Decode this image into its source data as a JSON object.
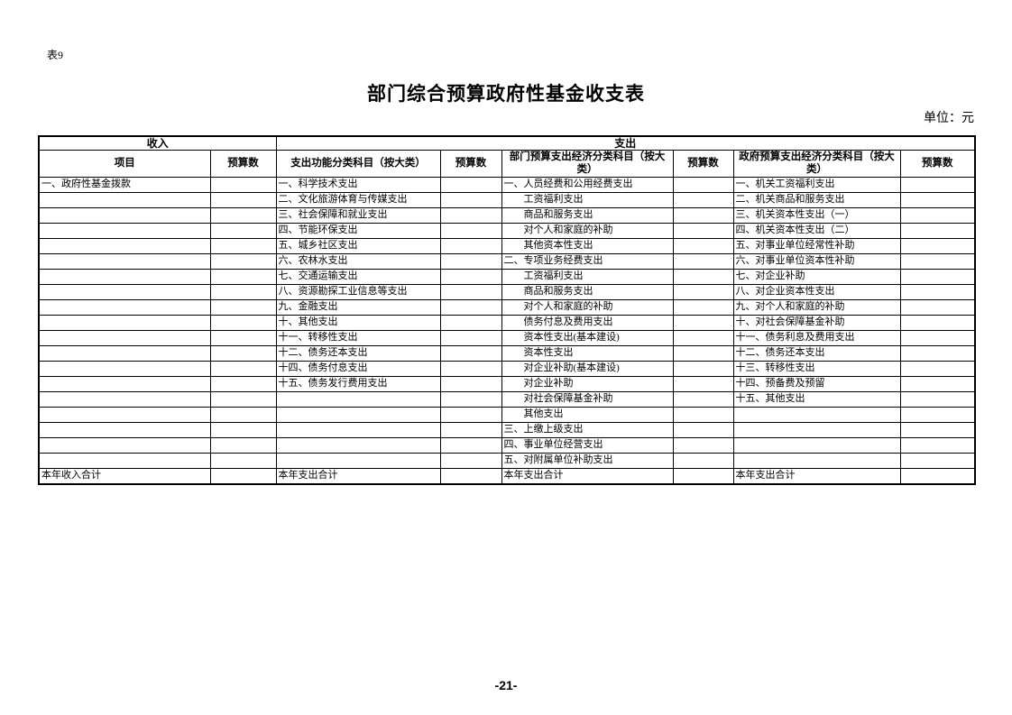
{
  "page": {
    "table_label": "表9",
    "title": "部门综合预算政府性基金收支表",
    "unit_label": "单位：元",
    "page_number": "-21-"
  },
  "table": {
    "group_headers": {
      "income": "收入",
      "expenditure": "支出"
    },
    "column_headers": {
      "income_item": "项目",
      "income_budget": "预算数",
      "func_class": "支出功能分类科目（按大类）",
      "func_budget": "预算数",
      "dept_econ_class": "部门预算支出经济分类科目（按大类）",
      "dept_budget": "预算数",
      "gov_econ_class": "政府预算支出经济分类科目（按大类）",
      "gov_budget": "预算数"
    },
    "rows": [
      [
        "一、政府性基金拨款",
        "",
        "一、科学技术支出",
        "",
        "一、人员经费和公用经费支出",
        "",
        "一、机关工资福利支出",
        ""
      ],
      [
        "",
        "",
        "二、文化旅游体育与传媒支出",
        "",
        "　　工资福利支出",
        "",
        "二、机关商品和服务支出",
        ""
      ],
      [
        "",
        "",
        "三、社会保障和就业支出",
        "",
        "　　商品和服务支出",
        "",
        "三、机关资本性支出（一）",
        ""
      ],
      [
        "",
        "",
        "四、节能环保支出",
        "",
        "　　对个人和家庭的补助",
        "",
        "四、机关资本性支出（二）",
        ""
      ],
      [
        "",
        "",
        "五、城乡社区支出",
        "",
        "　　其他资本性支出",
        "",
        "五、对事业单位经常性补助",
        ""
      ],
      [
        "",
        "",
        "六、农林水支出",
        "",
        "二、专项业务经费支出",
        "",
        "六、对事业单位资本性补助",
        ""
      ],
      [
        "",
        "",
        "七、交通运输支出",
        "",
        "　　工资福利支出",
        "",
        "七、对企业补助",
        ""
      ],
      [
        "",
        "",
        "八、资源勘探工业信息等支出",
        "",
        "　　商品和服务支出",
        "",
        "八、对企业资本性支出",
        ""
      ],
      [
        "",
        "",
        "九、金融支出",
        "",
        "　　对个人和家庭的补助",
        "",
        "九、对个人和家庭的补助",
        ""
      ],
      [
        "",
        "",
        "十、其他支出",
        "",
        "　　债务付息及费用支出",
        "",
        "十、对社会保障基金补助",
        ""
      ],
      [
        "",
        "",
        "十一、转移性支出",
        "",
        "　　资本性支出(基本建设)",
        "",
        "十一、债务利息及费用支出",
        ""
      ],
      [
        "",
        "",
        "十二、债务还本支出",
        "",
        "　　资本性支出",
        "",
        "十二、债务还本支出",
        ""
      ],
      [
        "",
        "",
        "十四、债务付息支出",
        "",
        "　　对企业补助(基本建设)",
        "",
        "十三、转移性支出",
        ""
      ],
      [
        "",
        "",
        "十五、债务发行费用支出",
        "",
        "　　对企业补助",
        "",
        "十四、预备费及预留",
        ""
      ],
      [
        "",
        "",
        "",
        "",
        "　　对社会保障基金补助",
        "",
        "十五、其他支出",
        ""
      ],
      [
        "",
        "",
        "",
        "",
        "　　其他支出",
        "",
        "",
        ""
      ],
      [
        "",
        "",
        "",
        "",
        "三、上缴上级支出",
        "",
        "",
        ""
      ],
      [
        "",
        "",
        "",
        "",
        "四、事业单位经营支出",
        "",
        "",
        ""
      ],
      [
        "",
        "",
        "",
        "",
        "五、对附属单位补助支出",
        "",
        "",
        ""
      ]
    ],
    "total_row": [
      "本年收入合计",
      "",
      "本年支出合计",
      "",
      "本年支出合计",
      "",
      "本年支出合计",
      ""
    ]
  }
}
